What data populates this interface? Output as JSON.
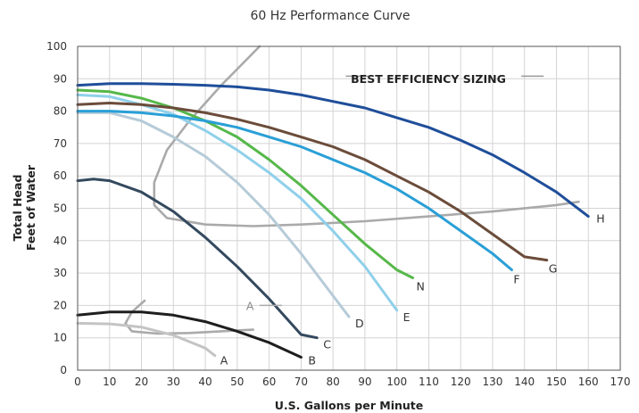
{
  "chart_data": {
    "type": "line",
    "title": "60 Hz Performance Curve",
    "xlabel": "U.S. Gallons per Minute",
    "ylabel_lines": [
      "Total Head",
      "Feet of Water"
    ],
    "xlim": [
      0,
      170
    ],
    "ylim": [
      0,
      100
    ],
    "xticks": [
      0,
      10,
      20,
      30,
      40,
      50,
      60,
      70,
      80,
      90,
      100,
      110,
      120,
      130,
      140,
      150,
      160,
      170
    ],
    "yticks": [
      0,
      10,
      20,
      30,
      40,
      50,
      60,
      70,
      80,
      90,
      100
    ],
    "grid": true,
    "annotation": "BEST EFFICIENCY SIZING",
    "series": [
      {
        "name": "A",
        "color": "#c4c4c4",
        "x": [
          0,
          10,
          20,
          30,
          40,
          43
        ],
        "y": [
          14.5,
          14.3,
          13.3,
          10.8,
          6.8,
          4.5
        ]
      },
      {
        "name": "B",
        "color": "#1e1e1e",
        "x": [
          0,
          10,
          20,
          30,
          40,
          50,
          60,
          70
        ],
        "y": [
          17,
          18,
          18,
          17,
          15,
          12,
          8.5,
          4
        ]
      },
      {
        "name": "C",
        "color": "#34495e",
        "x": [
          0,
          5,
          10,
          20,
          30,
          40,
          50,
          60,
          70,
          75
        ],
        "y": [
          58.5,
          59,
          58.5,
          55,
          49,
          41,
          32,
          22,
          11,
          10
        ]
      },
      {
        "name": "D",
        "color": "#b6cbd8",
        "x": [
          0,
          10,
          20,
          30,
          40,
          50,
          60,
          70,
          80,
          85
        ],
        "y": [
          79.5,
          79.5,
          77,
          72,
          66,
          58,
          48,
          36,
          23,
          16.5
        ]
      },
      {
        "name": "E",
        "color": "#8fd0ea",
        "x": [
          0,
          10,
          20,
          30,
          40,
          50,
          60,
          70,
          80,
          90,
          100
        ],
        "y": [
          85,
          84.5,
          82,
          79,
          74,
          68,
          61,
          53,
          43,
          32,
          18.5
        ]
      },
      {
        "name": "N",
        "color": "#56b84a",
        "x": [
          0,
          10,
          20,
          30,
          40,
          50,
          60,
          70,
          80,
          90,
          100,
          105
        ],
        "y": [
          86.5,
          86,
          84,
          81,
          77,
          72,
          65,
          57,
          48,
          39,
          31,
          28.5
        ]
      },
      {
        "name": "F",
        "color": "#2a9fd6",
        "x": [
          0,
          10,
          20,
          30,
          40,
          50,
          60,
          70,
          80,
          90,
          100,
          110,
          120,
          130,
          136
        ],
        "y": [
          80,
          80,
          79.5,
          78.5,
          77,
          75,
          72,
          69,
          65,
          61,
          56,
          50,
          43,
          36,
          31
        ]
      },
      {
        "name": "G",
        "color": "#6b4c3a",
        "x": [
          0,
          10,
          20,
          30,
          40,
          50,
          60,
          70,
          80,
          90,
          100,
          110,
          120,
          130,
          140,
          147
        ],
        "y": [
          82,
          82.5,
          82,
          81,
          79.5,
          77.5,
          75,
          72,
          69,
          65,
          60,
          55,
          49,
          42,
          35,
          34
        ]
      },
      {
        "name": "H",
        "color": "#1f4e9a",
        "x": [
          0,
          10,
          20,
          30,
          40,
          50,
          60,
          70,
          80,
          90,
          100,
          110,
          120,
          130,
          140,
          150,
          160
        ],
        "y": [
          88,
          88.5,
          88.5,
          88.3,
          88,
          87.5,
          86.5,
          85,
          83,
          81,
          78,
          75,
          71,
          66.5,
          61,
          55,
          47.5
        ]
      }
    ],
    "best_efficiency_lines": [
      {
        "color": "#aaaaaa",
        "x": [
          57,
          45,
          35,
          28,
          24,
          24,
          28,
          40,
          55,
          70,
          90,
          110,
          130,
          150,
          157
        ],
        "y": [
          100,
          88,
          77,
          68,
          58,
          51,
          47,
          45,
          44.5,
          45,
          46,
          47.5,
          49,
          51,
          52
        ]
      },
      {
        "color": "#aaaaaa",
        "x": [
          21,
          17,
          15,
          17,
          25,
          35,
          45,
          55
        ],
        "y": [
          21.5,
          18,
          14.5,
          12,
          11.3,
          11.5,
          12,
          12.5
        ]
      }
    ]
  }
}
